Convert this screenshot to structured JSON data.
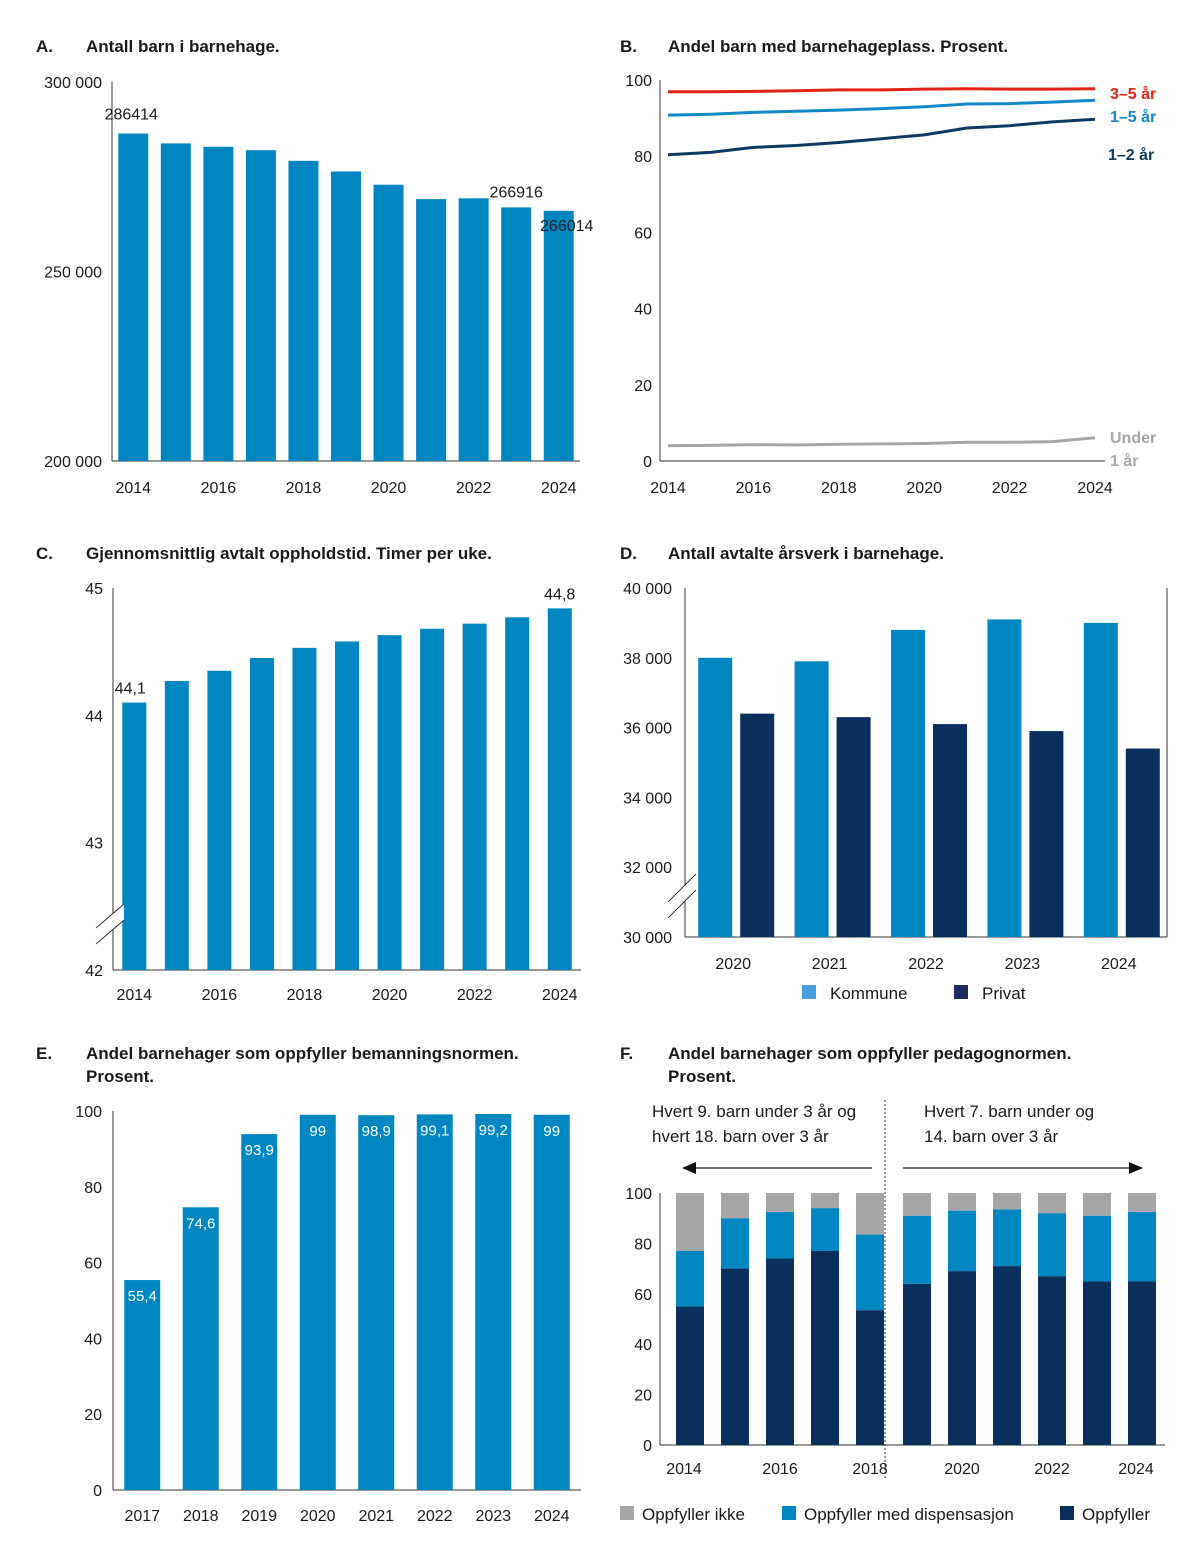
{
  "chart_data": [
    {
      "id": "A",
      "type": "bar",
      "letter": "A.",
      "title": "Antall barn i barnehage.",
      "categories": [
        "2014",
        "2015",
        "2016",
        "2017",
        "2018",
        "2019",
        "2020",
        "2021",
        "2022",
        "2023",
        "2024"
      ],
      "values": [
        286414,
        283800,
        282900,
        282000,
        279200,
        276400,
        272900,
        269100,
        269300,
        266916,
        266014
      ],
      "ylim": [
        200000,
        300000
      ],
      "yticks": [
        200000,
        250000,
        300000
      ],
      "ytick_labels": [
        "200 000",
        "250 000",
        "300 000"
      ],
      "xtick_labels": [
        "2014",
        "2016",
        "2018",
        "2020",
        "2022",
        "2024"
      ],
      "data_labels": [
        {
          "index": 0,
          "text": "286414"
        },
        {
          "index": 9,
          "text": "266916"
        },
        {
          "index": 10,
          "text": "266014"
        }
      ],
      "color": "#0086c0"
    },
    {
      "id": "B",
      "type": "line",
      "letter": "B.",
      "title": "Andel barn med barnehageplass. Prosent.",
      "x": [
        2014,
        2015,
        2016,
        2017,
        2018,
        2019,
        2020,
        2021,
        2022,
        2023,
        2024
      ],
      "series": [
        {
          "name": "3–5 år",
          "color": "#e2231a",
          "values": [
            96.9,
            96.9,
            97.0,
            97.2,
            97.4,
            97.4,
            97.6,
            97.7,
            97.6,
            97.6,
            97.7
          ]
        },
        {
          "name": "1–5 år",
          "color": "#1289c6",
          "values": [
            90.8,
            91.0,
            91.5,
            91.8,
            92.1,
            92.5,
            93.0,
            93.7,
            93.8,
            94.2,
            94.7
          ]
        },
        {
          "name": "1–2 år",
          "color": "#0e3a62",
          "values": [
            80.4,
            81.0,
            82.3,
            82.8,
            83.6,
            84.6,
            85.6,
            87.4,
            88.0,
            89.0,
            89.7
          ]
        },
        {
          "name": "Under 1 år",
          "color": "#a6a6a6",
          "values": [
            4.0,
            4.1,
            4.3,
            4.2,
            4.4,
            4.5,
            4.6,
            4.9,
            4.9,
            5.1,
            6.1
          ]
        }
      ],
      "ylim": [
        0,
        100
      ],
      "yticks": [
        0,
        20,
        40,
        60,
        80,
        100
      ],
      "xtick_labels": [
        "2014",
        "2016",
        "2018",
        "2020",
        "2022",
        "2024"
      ]
    },
    {
      "id": "C",
      "type": "bar",
      "letter": "C.",
      "title": "Gjennomsnittlig avtalt oppholdstid. Timer per uke.",
      "categories": [
        "2014",
        "2015",
        "2016",
        "2017",
        "2018",
        "2019",
        "2020",
        "2021",
        "2022",
        "2023",
        "2024"
      ],
      "values": [
        44.1,
        44.27,
        44.35,
        44.45,
        44.53,
        44.58,
        44.63,
        44.68,
        44.72,
        44.77,
        44.84
      ],
      "ylim": [
        42,
        45
      ],
      "yticks": [
        42,
        43,
        44,
        45
      ],
      "xtick_labels": [
        "2014",
        "2016",
        "2018",
        "2020",
        "2022",
        "2024"
      ],
      "data_labels": [
        {
          "index": 0,
          "text": "44,1"
        },
        {
          "index": 10,
          "text": "44,8"
        }
      ],
      "axis_break": true,
      "color": "#0086c0"
    },
    {
      "id": "D",
      "type": "bar",
      "letter": "D.",
      "title": "Antall avtalte årsverk i barnehage.",
      "categories": [
        "2020",
        "2021",
        "2022",
        "2023",
        "2024"
      ],
      "series": [
        {
          "name": "Kommune",
          "color": "#0086c0",
          "legend_color": "#4a9fdb",
          "values": [
            38000,
            37900,
            38800,
            39100,
            39000
          ]
        },
        {
          "name": "Privat",
          "color": "#0a2f5c",
          "legend_color": "#1b2e5b",
          "values": [
            36400,
            36300,
            36100,
            35900,
            35400
          ]
        }
      ],
      "ylim": [
        30000,
        40000
      ],
      "yticks": [
        30000,
        32000,
        34000,
        36000,
        38000,
        40000
      ],
      "ytick_labels": [
        "30 000",
        "32 000",
        "34 000",
        "36 000",
        "38 000",
        "40 000"
      ],
      "axis_break": true
    },
    {
      "id": "E",
      "type": "bar",
      "letter": "E.",
      "title_lines": [
        "Andel barnehager som oppfyller bemanningsnormen.",
        "Prosent."
      ],
      "categories": [
        "2017",
        "2018",
        "2019",
        "2020",
        "2021",
        "2022",
        "2023",
        "2024"
      ],
      "values": [
        55.4,
        74.6,
        93.9,
        99,
        98.9,
        99.1,
        99.2,
        99
      ],
      "value_labels": [
        "55,4",
        "74,6",
        "93,9",
        "99",
        "98,9",
        "99,1",
        "99,2",
        "99"
      ],
      "ylim": [
        0,
        100
      ],
      "yticks": [
        0,
        20,
        40,
        60,
        80,
        100
      ],
      "color": "#0086c0"
    },
    {
      "id": "F",
      "type": "bar",
      "stacked": true,
      "letter": "F.",
      "title_lines": [
        "Andel barnehager som oppfyller pedagognormen.",
        "Prosent."
      ],
      "categories": [
        "2014",
        "2015",
        "2016",
        "2017",
        "2018",
        "2019",
        "2020",
        "2021",
        "2022",
        "2023",
        "2024"
      ],
      "series": [
        {
          "name": "Oppfyller",
          "color": "#0a2f5c",
          "values": [
            55,
            70,
            74,
            77,
            53.5,
            64,
            69,
            71,
            67,
            65,
            65
          ]
        },
        {
          "name": "Oppfyller  med dispensasjon",
          "color": "#0086c0",
          "values": [
            22,
            20,
            18.5,
            17,
            30,
            27,
            24,
            22.5,
            25,
            26,
            27.5
          ]
        },
        {
          "name": "Oppfyller ikke",
          "color": "#a6a6a6",
          "values": [
            23,
            10,
            7.5,
            6,
            16.5,
            9,
            7,
            6.5,
            8,
            9,
            7.5
          ]
        }
      ],
      "ylim": [
        0,
        100
      ],
      "yticks": [
        0,
        20,
        40,
        60,
        80,
        100
      ],
      "xtick_labels": [
        "2014",
        "2016",
        "2018",
        "2020",
        "2022",
        "2024"
      ],
      "periods": [
        {
          "text_lines": [
            "Hvert 9. barn under 3 år og",
            "hvert 18. barn over 3 år"
          ]
        },
        {
          "text_lines": [
            "Hvert 7. barn under og",
            "14. barn over 3 år"
          ]
        }
      ]
    }
  ]
}
